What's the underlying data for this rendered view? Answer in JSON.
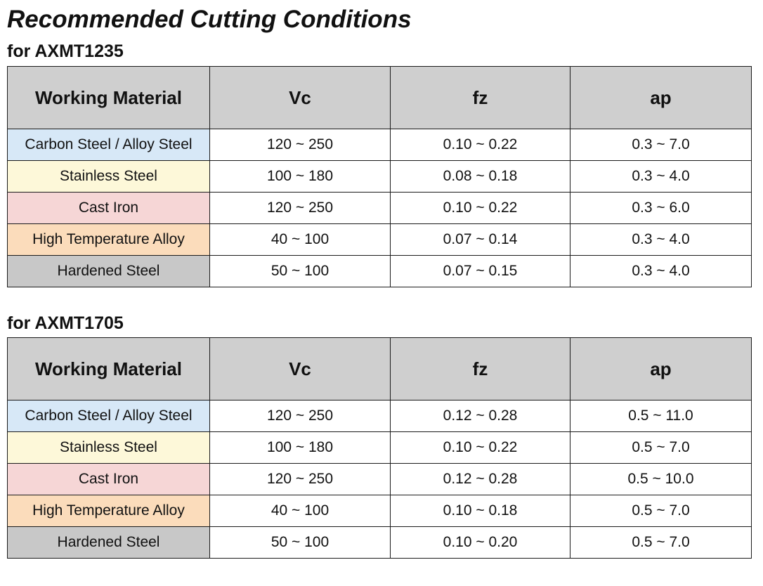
{
  "page": {
    "title": "Recommended Cutting Conditions"
  },
  "headers": {
    "material": "Working Material",
    "vc": "Vc",
    "fz": "fz",
    "ap": "ap"
  },
  "material_colors": {
    "carbon": "#d7e8f7",
    "stainless": "#fdf8d9",
    "cast_iron": "#f6d6d6",
    "high_temp": "#fbdcbb",
    "hardened": "#c8c8c8",
    "header": "#cfcfcf"
  },
  "tables": [
    {
      "title": "for AXMT1235",
      "rows": [
        {
          "material": "Carbon Steel / Alloy Steel",
          "vc": "120 ~ 250",
          "fz": "0.10 ~ 0.22",
          "ap": "0.3 ~ 7.0"
        },
        {
          "material": "Stainless Steel",
          "vc": "100 ~ 180",
          "fz": "0.08 ~ 0.18",
          "ap": "0.3 ~ 4.0"
        },
        {
          "material": "Cast Iron",
          "vc": "120 ~ 250",
          "fz": "0.10 ~ 0.22",
          "ap": "0.3 ~ 6.0"
        },
        {
          "material": "High Temperature Alloy",
          "vc": "40 ~ 100",
          "fz": "0.07 ~ 0.14",
          "ap": "0.3 ~ 4.0"
        },
        {
          "material": "Hardened Steel",
          "vc": "50 ~ 100",
          "fz": "0.07 ~ 0.15",
          "ap": "0.3 ~ 4.0"
        }
      ]
    },
    {
      "title": "for AXMT1705",
      "rows": [
        {
          "material": "Carbon Steel / Alloy Steel",
          "vc": "120 ~ 250",
          "fz": "0.12 ~ 0.28",
          "ap": "0.5 ~ 11.0"
        },
        {
          "material": "Stainless Steel",
          "vc": "100 ~ 180",
          "fz": "0.10 ~ 0.22",
          "ap": "0.5 ~ 7.0"
        },
        {
          "material": "Cast Iron",
          "vc": "120 ~ 250",
          "fz": "0.12 ~ 0.28",
          "ap": "0.5 ~ 10.0"
        },
        {
          "material": "High Temperature Alloy",
          "vc": "40 ~ 100",
          "fz": "0.10 ~ 0.18",
          "ap": "0.5 ~ 7.0"
        },
        {
          "material": "Hardened Steel",
          "vc": "50 ~ 100",
          "fz": "0.10 ~ 0.20",
          "ap": "0.5 ~ 7.0"
        }
      ]
    }
  ]
}
